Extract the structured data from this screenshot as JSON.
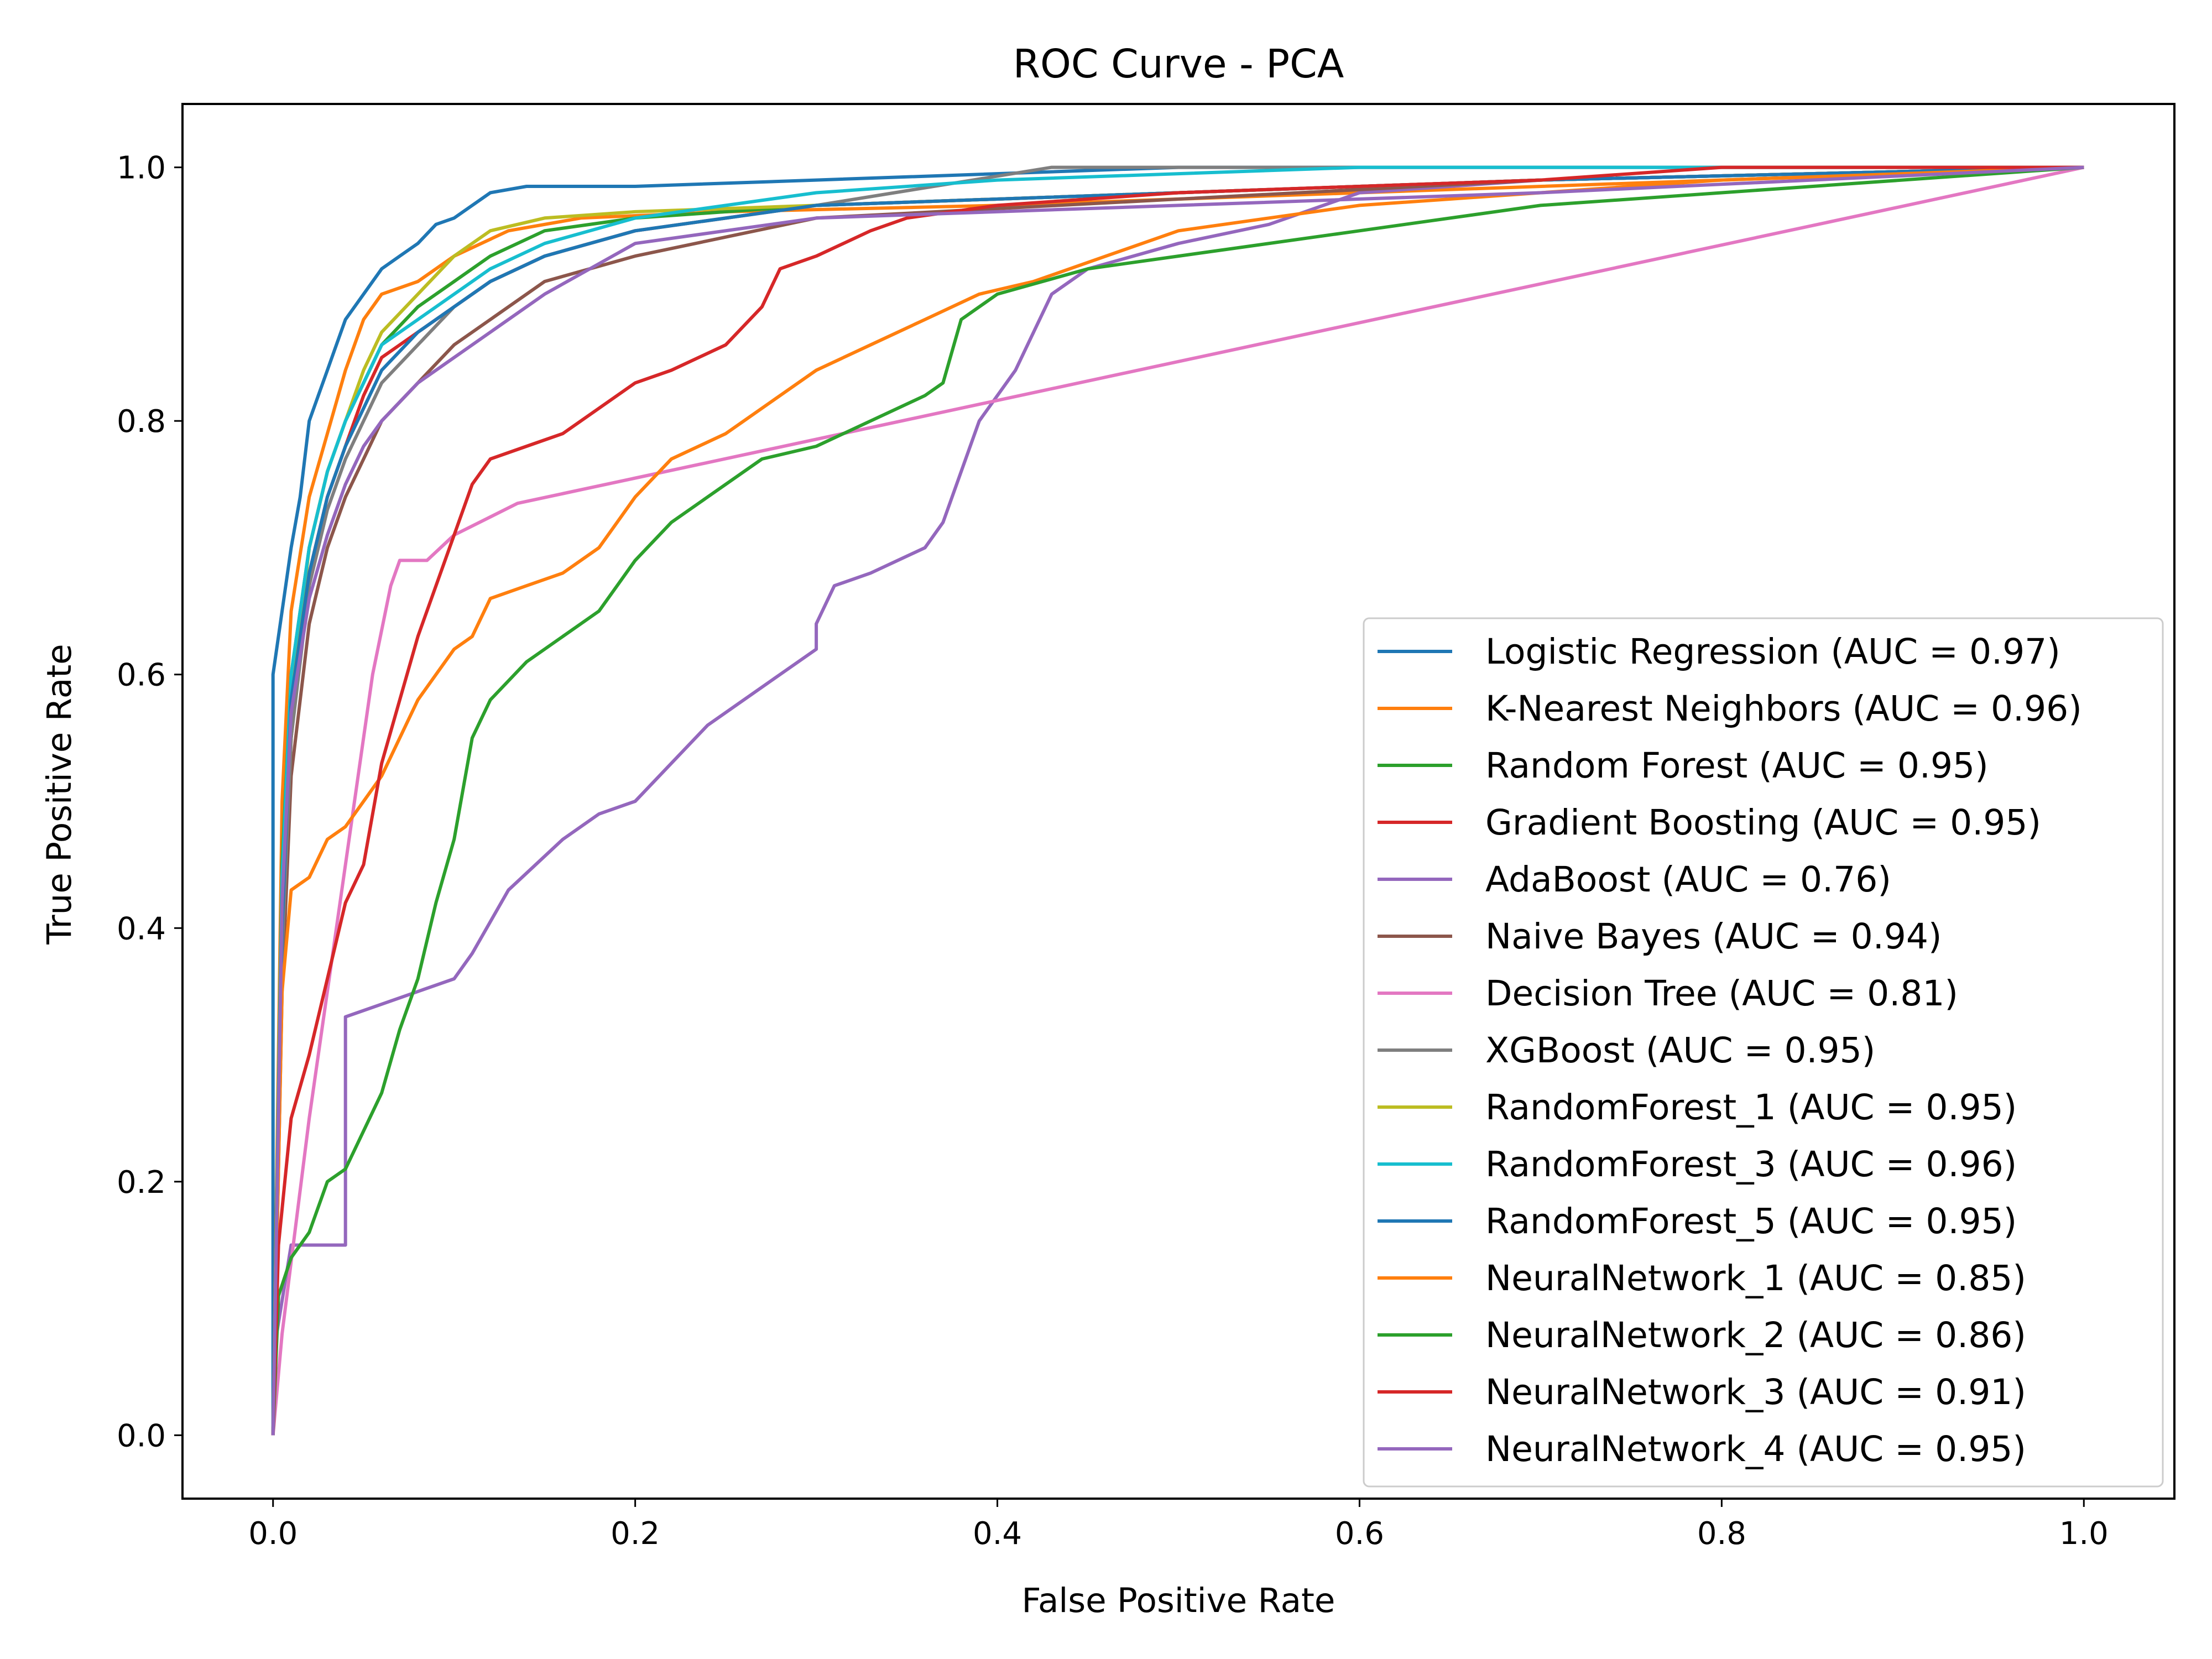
{
  "chart_data": {
    "type": "line",
    "title": "ROC Curve - PCA",
    "xlabel": "False Positive Rate",
    "ylabel": "True Positive Rate",
    "xlim": [
      -0.05,
      1.05
    ],
    "ylim": [
      -0.05,
      1.05
    ],
    "xticks": [
      0.0,
      0.2,
      0.4,
      0.6,
      0.8,
      1.0
    ],
    "xtick_labels": [
      "0.0",
      "0.2",
      "0.4",
      "0.6",
      "0.8",
      "1.0"
    ],
    "yticks": [
      0.0,
      0.2,
      0.4,
      0.6,
      0.8,
      1.0
    ],
    "ytick_labels": [
      "0.0",
      "0.2",
      "0.4",
      "0.6",
      "0.8",
      "1.0"
    ],
    "grid": false,
    "legend_position": "lower-right",
    "series": [
      {
        "name": "Logistic Regression (AUC = 0.97)",
        "color": "#1f77b4",
        "x": [
          0,
          0,
          0.005,
          0.01,
          0.015,
          0.02,
          0.025,
          0.03,
          0.035,
          0.04,
          0.05,
          0.06,
          0.07,
          0.08,
          0.09,
          0.1,
          0.11,
          0.12,
          0.14,
          0.2,
          0.3,
          0.5,
          1.0
        ],
        "y": [
          0,
          0.6,
          0.65,
          0.7,
          0.74,
          0.8,
          0.82,
          0.84,
          0.86,
          0.88,
          0.9,
          0.92,
          0.93,
          0.94,
          0.955,
          0.96,
          0.97,
          0.98,
          0.985,
          0.985,
          0.99,
          1.0,
          1.0
        ]
      },
      {
        "name": "K-Nearest Neighbors (AUC = 0.96)",
        "color": "#ff7f0e",
        "x": [
          0,
          0.005,
          0.01,
          0.02,
          0.03,
          0.04,
          0.05,
          0.06,
          0.08,
          0.1,
          0.13,
          0.17,
          0.25,
          0.4,
          0.6,
          0.8,
          1.0
        ],
        "y": [
          0,
          0.5,
          0.65,
          0.74,
          0.79,
          0.84,
          0.88,
          0.9,
          0.91,
          0.93,
          0.95,
          0.96,
          0.965,
          0.97,
          0.98,
          0.99,
          1.0
        ]
      },
      {
        "name": "Random Forest (AUC = 0.95)",
        "color": "#2ca02c",
        "x": [
          0,
          0.005,
          0.01,
          0.02,
          0.03,
          0.04,
          0.05,
          0.06,
          0.08,
          0.1,
          0.12,
          0.15,
          0.2,
          0.3,
          0.5,
          0.7,
          1.0
        ],
        "y": [
          0,
          0.45,
          0.6,
          0.7,
          0.76,
          0.8,
          0.83,
          0.86,
          0.89,
          0.91,
          0.93,
          0.95,
          0.96,
          0.97,
          0.98,
          0.99,
          1.0
        ]
      },
      {
        "name": "Gradient Boosting (AUC = 0.95)",
        "color": "#d62728",
        "x": [
          0,
          0.005,
          0.01,
          0.02,
          0.03,
          0.04,
          0.05,
          0.06,
          0.08,
          0.1,
          0.12,
          0.15,
          0.2,
          0.3,
          0.5,
          0.7,
          1.0
        ],
        "y": [
          0,
          0.4,
          0.55,
          0.68,
          0.74,
          0.78,
          0.82,
          0.85,
          0.87,
          0.89,
          0.91,
          0.93,
          0.95,
          0.97,
          0.98,
          0.99,
          1.0
        ]
      },
      {
        "name": "AdaBoost (AUC = 0.76)",
        "color": "#9467bd",
        "x": [
          0,
          0.002,
          0.01,
          0.02,
          0.04,
          0.04,
          0.07,
          0.1,
          0.11,
          0.13,
          0.16,
          0.18,
          0.2,
          0.22,
          0.24,
          0.28,
          0.3,
          0.3,
          0.31,
          0.33,
          0.36,
          0.37,
          0.39,
          0.41,
          0.43,
          0.45,
          0.5,
          0.55,
          0.6,
          0.7,
          1.0
        ],
        "y": [
          0,
          0.08,
          0.15,
          0.15,
          0.15,
          0.33,
          0.345,
          0.36,
          0.38,
          0.43,
          0.47,
          0.49,
          0.5,
          0.53,
          0.56,
          0.6,
          0.62,
          0.64,
          0.67,
          0.68,
          0.7,
          0.72,
          0.8,
          0.84,
          0.9,
          0.92,
          0.94,
          0.955,
          0.98,
          0.99,
          1.0
        ]
      },
      {
        "name": "Naive Bayes (AUC = 0.94)",
        "color": "#8c564b",
        "x": [
          0,
          0.005,
          0.01,
          0.02,
          0.03,
          0.04,
          0.05,
          0.06,
          0.08,
          0.1,
          0.12,
          0.15,
          0.2,
          0.3,
          0.5,
          0.7,
          1.0
        ],
        "y": [
          0,
          0.35,
          0.52,
          0.64,
          0.7,
          0.74,
          0.77,
          0.8,
          0.83,
          0.86,
          0.88,
          0.91,
          0.93,
          0.96,
          0.975,
          0.99,
          1.0
        ]
      },
      {
        "name": "Decision Tree (AUC = 0.81)",
        "color": "#e377c2",
        "x": [
          0,
          0.005,
          0.02,
          0.04,
          0.055,
          0.065,
          0.07,
          0.085,
          0.1,
          0.135,
          1.0
        ],
        "y": [
          0,
          0.08,
          0.25,
          0.45,
          0.6,
          0.67,
          0.69,
          0.69,
          0.71,
          0.735,
          1.0
        ]
      },
      {
        "name": "XGBoost (AUC = 0.95)",
        "color": "#7f7f7f",
        "x": [
          0,
          0.005,
          0.01,
          0.02,
          0.03,
          0.04,
          0.05,
          0.06,
          0.08,
          0.1,
          0.12,
          0.15,
          0.2,
          0.3,
          0.43,
          0.6,
          1.0
        ],
        "y": [
          0,
          0.38,
          0.55,
          0.67,
          0.73,
          0.77,
          0.8,
          0.83,
          0.86,
          0.89,
          0.91,
          0.93,
          0.95,
          0.97,
          1.0,
          1.0,
          1.0
        ]
      },
      {
        "name": "RandomForest_1 (AUC = 0.95)",
        "color": "#bcbd22",
        "x": [
          0,
          0.005,
          0.01,
          0.02,
          0.03,
          0.04,
          0.05,
          0.06,
          0.08,
          0.1,
          0.12,
          0.15,
          0.2,
          0.3,
          0.5,
          0.7,
          1.0
        ],
        "y": [
          0,
          0.42,
          0.58,
          0.7,
          0.76,
          0.8,
          0.84,
          0.87,
          0.9,
          0.93,
          0.95,
          0.96,
          0.965,
          0.97,
          0.98,
          0.99,
          1.0
        ]
      },
      {
        "name": "RandomForest_3 (AUC = 0.96)",
        "color": "#17becf",
        "x": [
          0,
          0.005,
          0.01,
          0.02,
          0.03,
          0.04,
          0.05,
          0.06,
          0.08,
          0.1,
          0.12,
          0.15,
          0.2,
          0.3,
          0.4,
          0.6,
          1.0
        ],
        "y": [
          0,
          0.44,
          0.6,
          0.7,
          0.76,
          0.8,
          0.83,
          0.86,
          0.88,
          0.9,
          0.92,
          0.94,
          0.96,
          0.98,
          0.99,
          1.0,
          1.0
        ]
      },
      {
        "name": "RandomForest_5 (AUC = 0.95)",
        "color": "#1f77b4",
        "x": [
          0,
          0.005,
          0.01,
          0.02,
          0.03,
          0.04,
          0.05,
          0.06,
          0.08,
          0.1,
          0.12,
          0.15,
          0.2,
          0.3,
          0.5,
          0.7,
          1.0
        ],
        "y": [
          0,
          0.4,
          0.58,
          0.68,
          0.74,
          0.78,
          0.81,
          0.84,
          0.87,
          0.89,
          0.91,
          0.93,
          0.95,
          0.97,
          0.98,
          0.99,
          1.0
        ]
      },
      {
        "name": "NeuralNetwork_1 (AUC = 0.85)",
        "color": "#ff7f0e",
        "x": [
          0,
          0.005,
          0.01,
          0.02,
          0.03,
          0.04,
          0.05,
          0.06,
          0.07,
          0.08,
          0.09,
          0.1,
          0.11,
          0.12,
          0.14,
          0.16,
          0.18,
          0.19,
          0.2,
          0.22,
          0.25,
          0.28,
          0.3,
          0.33,
          0.36,
          0.39,
          0.42,
          0.46,
          0.5,
          0.55,
          0.6,
          0.8,
          1.0
        ],
        "y": [
          0,
          0.35,
          0.43,
          0.44,
          0.47,
          0.48,
          0.5,
          0.52,
          0.55,
          0.58,
          0.6,
          0.62,
          0.63,
          0.66,
          0.67,
          0.68,
          0.7,
          0.72,
          0.74,
          0.77,
          0.79,
          0.82,
          0.84,
          0.86,
          0.88,
          0.9,
          0.91,
          0.93,
          0.95,
          0.96,
          0.97,
          0.99,
          1.0
        ]
      },
      {
        "name": "NeuralNetwork_2 (AUC = 0.86)",
        "color": "#2ca02c",
        "x": [
          0,
          0.003,
          0.01,
          0.02,
          0.03,
          0.04,
          0.05,
          0.06,
          0.07,
          0.08,
          0.09,
          0.1,
          0.11,
          0.12,
          0.14,
          0.16,
          0.18,
          0.19,
          0.2,
          0.22,
          0.24,
          0.27,
          0.3,
          0.33,
          0.36,
          0.37,
          0.38,
          0.4,
          0.45,
          0.5,
          0.6,
          0.7,
          0.8,
          1.0
        ],
        "y": [
          0,
          0.11,
          0.14,
          0.16,
          0.2,
          0.21,
          0.24,
          0.27,
          0.32,
          0.36,
          0.42,
          0.47,
          0.55,
          0.58,
          0.61,
          0.63,
          0.65,
          0.67,
          0.69,
          0.72,
          0.74,
          0.77,
          0.78,
          0.8,
          0.82,
          0.83,
          0.88,
          0.9,
          0.92,
          0.93,
          0.95,
          0.97,
          0.98,
          1.0
        ]
      },
      {
        "name": "NeuralNetwork_3 (AUC = 0.91)",
        "color": "#d62728",
        "x": [
          0,
          0.003,
          0.01,
          0.02,
          0.03,
          0.04,
          0.05,
          0.06,
          0.07,
          0.08,
          0.09,
          0.1,
          0.11,
          0.12,
          0.14,
          0.16,
          0.18,
          0.2,
          0.22,
          0.25,
          0.27,
          0.28,
          0.3,
          0.33,
          0.35,
          0.4,
          0.5,
          0.6,
          0.7,
          0.8,
          1.0
        ],
        "y": [
          0,
          0.15,
          0.25,
          0.3,
          0.36,
          0.42,
          0.45,
          0.53,
          0.58,
          0.63,
          0.67,
          0.71,
          0.75,
          0.77,
          0.78,
          0.79,
          0.81,
          0.83,
          0.84,
          0.86,
          0.89,
          0.92,
          0.93,
          0.95,
          0.96,
          0.97,
          0.98,
          0.985,
          0.99,
          1.0,
          1.0
        ]
      },
      {
        "name": "NeuralNetwork_4 (AUC = 0.95)",
        "color": "#9467bd",
        "x": [
          0,
          0.005,
          0.01,
          0.02,
          0.03,
          0.04,
          0.05,
          0.06,
          0.08,
          0.1,
          0.12,
          0.15,
          0.2,
          0.3,
          0.5,
          0.7,
          1.0
        ],
        "y": [
          0,
          0.42,
          0.57,
          0.66,
          0.71,
          0.75,
          0.78,
          0.8,
          0.83,
          0.85,
          0.87,
          0.9,
          0.94,
          0.96,
          0.97,
          0.98,
          1.0
        ]
      }
    ]
  }
}
